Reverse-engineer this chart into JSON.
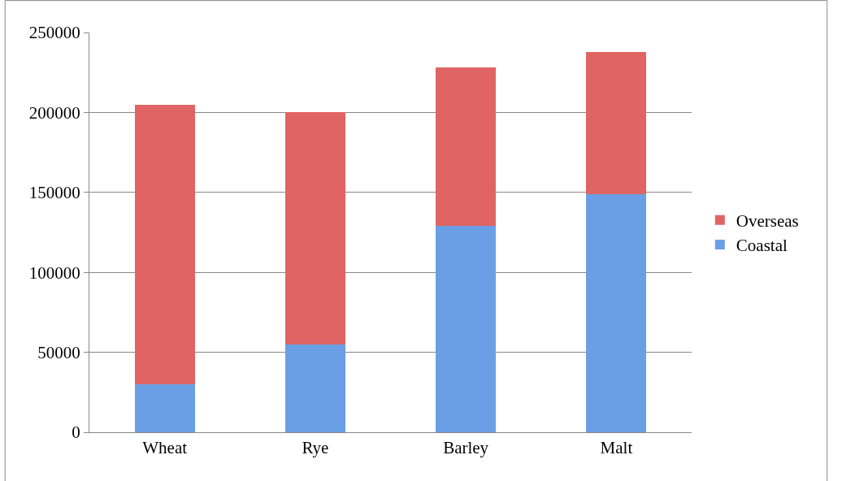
{
  "chart_data": {
    "type": "bar",
    "stacked": true,
    "categories": [
      "Wheat",
      "Rye",
      "Barley",
      "Malt"
    ],
    "series": [
      {
        "name": "Coastal",
        "color": "#6a9fe6",
        "values": [
          30000,
          55000,
          129000,
          149000
        ]
      },
      {
        "name": "Overseas",
        "color": "#e06464",
        "values": [
          175000,
          145000,
          99000,
          89000
        ]
      }
    ],
    "ylim": [
      0,
      250000
    ],
    "yticks": [
      0,
      50000,
      100000,
      150000,
      200000,
      250000
    ],
    "grid": "y",
    "legend": "right"
  }
}
